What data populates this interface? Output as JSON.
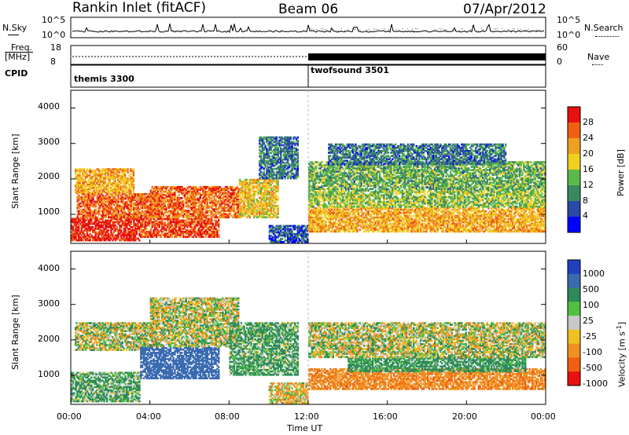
{
  "header": {
    "station": "Rankin Inlet (fitACF)",
    "beam": "Beam 06",
    "date": "07/Apr/2012"
  },
  "noise_panel": {
    "left_label": "N.Sky",
    "right_label": "N.Search",
    "left_ticks": [
      "10^5",
      "10^0"
    ],
    "right_ticks": [
      "10^5",
      "10^0"
    ]
  },
  "freq_panel": {
    "left_label_top": "Freq.",
    "left_label_bottom": "[MHz]",
    "right_label": "Nave",
    "left_ticks": [
      "18",
      "8"
    ],
    "right_ticks": [
      "60",
      "0"
    ]
  },
  "cpid_panel": {
    "label": "CPID",
    "programs": [
      {
        "name": "themis 3300",
        "start_hour": 0,
        "end_hour": 12
      },
      {
        "name": "twofsound 3501",
        "start_hour": 12,
        "end_hour": 24
      }
    ]
  },
  "time_axis": {
    "label": "Time UT",
    "ticks": [
      "00:00",
      "04:00",
      "08:00",
      "12:00",
      "16:00",
      "20:00",
      "00:00"
    ]
  },
  "power_panel": {
    "ylabel": "Slant Range [km]",
    "yticks": [
      "1000",
      "2000",
      "3000",
      "4000"
    ],
    "colorbar_label": "Power [dB]",
    "colorbar_ticks": [
      "4",
      "8",
      "12",
      "16",
      "20",
      "24",
      "28"
    ]
  },
  "velocity_panel": {
    "ylabel": "Slant Range [km]",
    "yticks": [
      "1000",
      "2000",
      "3000",
      "4000"
    ],
    "colorbar_label": "Velocity [m s",
    "colorbar_label_sup": "-1",
    "colorbar_label_end": "]",
    "colorbar_ticks": [
      "1000",
      "500",
      "100",
      "25",
      "-25",
      "-100",
      "-500",
      "-1000"
    ]
  },
  "chart_data": [
    {
      "type": "heatmap",
      "title": "Power",
      "xlabel": "Time UT",
      "ylabel": "Slant Range [km]",
      "xlim_hours": [
        0,
        24
      ],
      "ylim_km": [
        180,
        4500
      ],
      "colorbar": {
        "label": "Power [dB]",
        "range": [
          0,
          30
        ],
        "ticks": [
          4,
          8,
          12,
          16,
          20,
          24,
          28
        ],
        "colors": [
          "#0000ff",
          "#2a4aa8",
          "#3a8a60",
          "#5cba4a",
          "#f0d020",
          "#f0a020",
          "#f06010",
          "#e81010"
        ]
      },
      "regions": [
        {
          "t0": 0.0,
          "t1": 3.5,
          "r0": 250,
          "r1": 900,
          "value": 28
        },
        {
          "t0": 0.3,
          "t1": 4.5,
          "r0": 900,
          "r1": 1600,
          "value": 24
        },
        {
          "t0": 0.2,
          "t1": 3.2,
          "r0": 1600,
          "r1": 2300,
          "value": 20
        },
        {
          "t0": 3.5,
          "t1": 7.5,
          "r0": 350,
          "r1": 900,
          "value": 26
        },
        {
          "t0": 4.0,
          "t1": 8.5,
          "r0": 900,
          "r1": 1800,
          "value": 24
        },
        {
          "t0": 8.5,
          "t1": 10.5,
          "r0": 900,
          "r1": 2000,
          "value": 18
        },
        {
          "t0": 10.0,
          "t1": 12.0,
          "r0": 200,
          "r1": 700,
          "value": 6
        },
        {
          "t0": 9.5,
          "t1": 11.5,
          "r0": 2000,
          "r1": 3200,
          "value": 8
        },
        {
          "t0": 12.0,
          "t1": 24.0,
          "r0": 500,
          "r1": 1200,
          "value": 20
        },
        {
          "t0": 12.0,
          "t1": 24.0,
          "r0": 1200,
          "r1": 1700,
          "value": 14
        },
        {
          "t0": 12.0,
          "t1": 24.0,
          "r0": 1700,
          "r1": 2500,
          "value": 12
        },
        {
          "t0": 13.0,
          "t1": 22.0,
          "r0": 2400,
          "r1": 3000,
          "value": 8
        }
      ]
    },
    {
      "type": "heatmap",
      "title": "Velocity",
      "xlabel": "Time UT",
      "ylabel": "Slant Range [km]",
      "xlim_hours": [
        0,
        24
      ],
      "ylim_km": [
        180,
        4500
      ],
      "colorbar": {
        "label": "Velocity [m s-1]",
        "ticks": [
          1000,
          500,
          100,
          25,
          -25,
          -100,
          -500,
          -1000
        ],
        "colors": [
          "#2040c0",
          "#3a6ab0",
          "#2e8a5a",
          "#50c040",
          "#c8c8c8",
          "#f0c020",
          "#f09020",
          "#f06010",
          "#e81010"
        ]
      },
      "regions": [
        {
          "t0": 0.0,
          "t1": 3.5,
          "r0": 250,
          "r1": 1100,
          "value": 150
        },
        {
          "t0": 0.2,
          "t1": 4.0,
          "r0": 1700,
          "r1": 2500,
          "value": 0
        },
        {
          "t0": 3.5,
          "t1": 7.5,
          "r0": 900,
          "r1": 1800,
          "value": 800
        },
        {
          "t0": 4.0,
          "t1": 8.5,
          "r0": 1800,
          "r1": 3200,
          "value": 0
        },
        {
          "t0": 8.0,
          "t1": 11.5,
          "r0": 1000,
          "r1": 2500,
          "value": 150
        },
        {
          "t0": 10.0,
          "t1": 12.0,
          "r0": 200,
          "r1": 800,
          "value": -80
        },
        {
          "t0": 12.0,
          "t1": 24.0,
          "r0": 600,
          "r1": 1200,
          "value": -400
        },
        {
          "t0": 14.0,
          "t1": 23.0,
          "r0": 1100,
          "r1": 1500,
          "value": 200
        },
        {
          "t0": 12.0,
          "t1": 24.0,
          "r0": 1500,
          "r1": 2500,
          "value": 0
        }
      ]
    }
  ]
}
